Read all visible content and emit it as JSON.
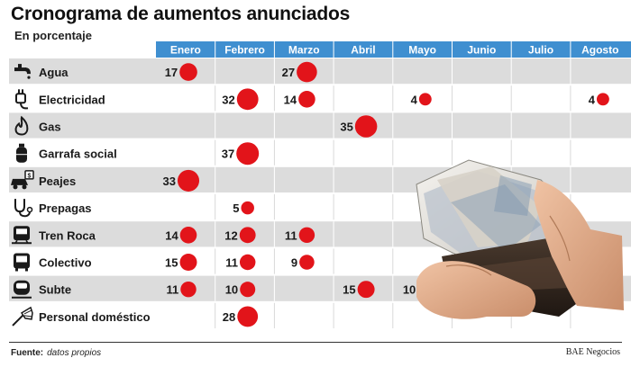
{
  "header": {
    "title": "Cronograma de aumentos anunciados",
    "subtitle": "En porcentaje"
  },
  "footer": {
    "source_label": "Fuente:",
    "source_value": "datos propios",
    "credit": "BAE Negocios"
  },
  "colors": {
    "header_blue": "#3f8fd0",
    "row_shade": "#dcdcdc",
    "bubble_red": "#e2141a"
  },
  "chart_data": {
    "type": "table",
    "title": "Cronograma de aumentos anunciados",
    "subtitle": "En porcentaje",
    "columns": [
      "Enero",
      "Febrero",
      "Marzo",
      "Abril",
      "Mayo",
      "Junio",
      "Julio",
      "Agosto"
    ],
    "rows": [
      {
        "label": "Agua",
        "icon": "faucet-icon",
        "values": [
          17,
          null,
          27,
          null,
          null,
          null,
          null,
          null
        ]
      },
      {
        "label": "Electricidad",
        "icon": "plug-icon",
        "values": [
          null,
          32,
          14,
          null,
          4,
          null,
          null,
          4
        ]
      },
      {
        "label": "Gas",
        "icon": "flame-icon",
        "values": [
          null,
          null,
          null,
          35,
          null,
          null,
          null,
          null
        ]
      },
      {
        "label": "Garrafa social",
        "icon": "gas-cylinder-icon",
        "values": [
          null,
          37,
          null,
          null,
          null,
          null,
          null,
          null
        ]
      },
      {
        "label": "Peajes",
        "icon": "toll-car-icon",
        "values": [
          33,
          null,
          null,
          null,
          null,
          null,
          null,
          null
        ]
      },
      {
        "label": "Prepagas",
        "icon": "stethoscope-icon",
        "values": [
          null,
          5,
          null,
          null,
          null,
          null,
          null,
          null
        ]
      },
      {
        "label": "Tren Roca",
        "icon": "train-icon",
        "values": [
          14,
          12,
          11,
          null,
          null,
          null,
          null,
          null
        ]
      },
      {
        "label": "Colectivo",
        "icon": "bus-icon",
        "values": [
          15,
          11,
          9,
          null,
          null,
          null,
          null,
          null
        ]
      },
      {
        "label": "Subte",
        "icon": "subway-icon",
        "values": [
          11,
          10,
          null,
          15,
          10,
          null,
          null,
          null
        ]
      },
      {
        "label": "Personal doméstico",
        "icon": "feather-duster-icon",
        "values": [
          null,
          28,
          null,
          null,
          null,
          null,
          null,
          null
        ]
      }
    ]
  }
}
